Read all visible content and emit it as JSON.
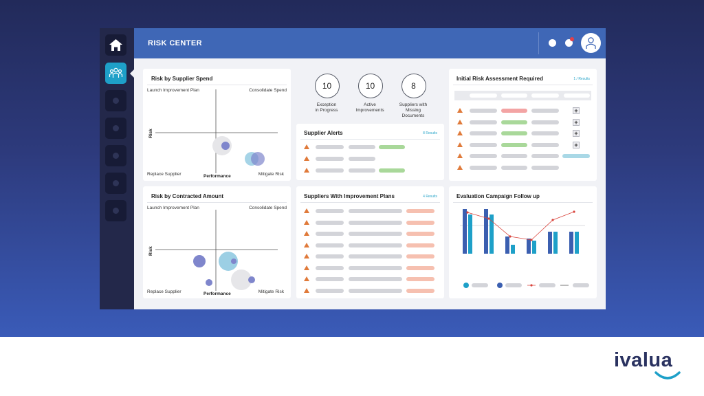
{
  "brand": {
    "logo_text": "ivalua"
  },
  "header": {
    "title": "RISK CENTER"
  },
  "sidebar": {
    "items": [
      {
        "icon": "home-icon",
        "active": false
      },
      {
        "icon": "people-group-icon",
        "active": true
      },
      {
        "icon": "placeholder-icon",
        "active": false
      },
      {
        "icon": "placeholder-icon",
        "active": false
      },
      {
        "icon": "placeholder-icon",
        "active": false
      },
      {
        "icon": "placeholder-icon",
        "active": false
      },
      {
        "icon": "placeholder-icon",
        "active": false
      }
    ]
  },
  "risk_by_supplier_spend": {
    "title": "Risk by Supplier Spend",
    "quadrants": {
      "top_left": "Launch Improvement Plan",
      "top_right": "Consolidate Spend",
      "bottom_left": "Replace Supplier",
      "bottom_right": "Mitigate Risk"
    },
    "x_axis": "Performance",
    "y_axis": "Risk"
  },
  "risk_by_contracted_amount": {
    "title": "Risk by Contracted Amount",
    "quadrants": {
      "top_left": "Launch Improvement Plan",
      "top_right": "Consolidate Spend",
      "bottom_left": "Replace Supplier",
      "bottom_right": "Mitigate Risk"
    },
    "x_axis": "Performance",
    "y_axis": "Risk"
  },
  "kpis": [
    {
      "value": "10",
      "label_line1": "Exception",
      "label_line2": "in Progress",
      "label_line3": ""
    },
    {
      "value": "10",
      "label_line1": "Active",
      "label_line2": "Improvements",
      "label_line3": ""
    },
    {
      "value": "8",
      "label_line1": "Suppliers with",
      "label_line2": "Missing",
      "label_line3": "Documents"
    }
  ],
  "supplier_alerts": {
    "title": "Supplier Alerts",
    "count": "8 Results"
  },
  "improvement_plans": {
    "title": "Suppliers With Improvement Plans",
    "count": "4 Results"
  },
  "initial_risk": {
    "title": "Initial Risk Assessment Required",
    "count": "1 / Results"
  },
  "evaluation_campaign": {
    "title": "Evaluation Campaign Follow up",
    "colors": {
      "series_dark": "#3b5fb0",
      "series_light": "#1ea0c8",
      "line": "#d9443c",
      "target": "#555555"
    }
  },
  "colors": {
    "accent": "#3f67b6",
    "sidebar": "#23284a",
    "alert": "#e07a3a",
    "teal": "#1ea0c8"
  }
}
